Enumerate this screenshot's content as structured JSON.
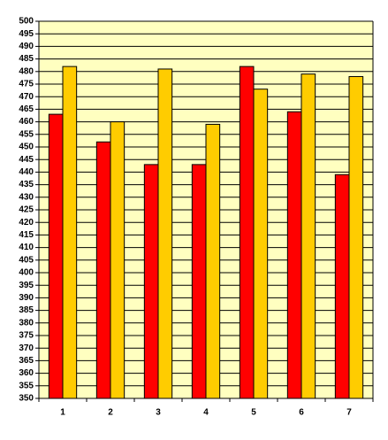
{
  "chart_data": {
    "type": "bar",
    "categories": [
      "1",
      "2",
      "3",
      "4",
      "5",
      "6",
      "7"
    ],
    "series": [
      {
        "color": "#ff0000",
        "values": [
          463,
          452,
          443,
          443,
          482,
          464,
          439
        ]
      },
      {
        "color": "#ffcc00",
        "values": [
          482,
          460,
          481,
          459,
          473,
          479,
          478
        ]
      }
    ],
    "ylim": [
      350,
      500
    ],
    "yticks": [
      350,
      355,
      360,
      365,
      370,
      375,
      380,
      385,
      390,
      395,
      400,
      405,
      410,
      415,
      420,
      425,
      430,
      435,
      440,
      445,
      450,
      455,
      460,
      465,
      470,
      475,
      480,
      485,
      490,
      495,
      500
    ],
    "grid": true,
    "plot_background": "#ffffc0"
  }
}
